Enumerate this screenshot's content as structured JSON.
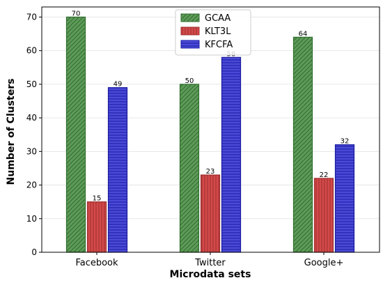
{
  "chart_data": {
    "type": "bar",
    "xlabel": "Microdata sets",
    "ylabel": "Number of Clusters",
    "categories": [
      "Facebook",
      "Twitter",
      "Google+"
    ],
    "ylim": [
      0,
      73
    ],
    "yticks": [
      0,
      10,
      20,
      30,
      40,
      50,
      60,
      70
    ],
    "grid": true,
    "legend_position": "top-center",
    "series": [
      {
        "name": "GCAA",
        "values": [
          70,
          50,
          64
        ],
        "labels": [
          "70",
          "50",
          "64"
        ],
        "fill": "#5f9a5a",
        "edge": "#2f6f2c",
        "pattern": "diagonal"
      },
      {
        "name": "KLT3L",
        "values": [
          15,
          23,
          22
        ],
        "labels": [
          "15",
          "23",
          "22"
        ],
        "fill": "#d34a4a",
        "edge": "#9f2f2f",
        "pattern": "vertical"
      },
      {
        "name": "KFCFA",
        "values": [
          49,
          58,
          32
        ],
        "labels": [
          "49",
          "58",
          "32"
        ],
        "fill": "#4a4ad8",
        "edge": "#1a1aa0",
        "pattern": "horizontal"
      }
    ]
  }
}
